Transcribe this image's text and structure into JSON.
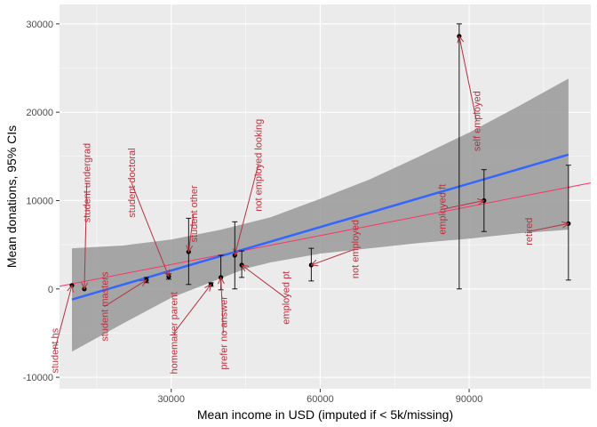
{
  "chart_data": {
    "type": "scatter",
    "title": "",
    "xlabel": "Mean income in USD (imputed if < 5k/missing)",
    "ylabel": "Mean donations, 95% CIs",
    "xlim": [
      7500,
      114500
    ],
    "ylim": [
      -11300,
      32200
    ],
    "x_ticks": [
      30000,
      60000,
      90000
    ],
    "x_tick_labels": [
      "30000",
      "60000",
      "90000"
    ],
    "y_ticks": [
      -10000,
      0,
      10000,
      20000,
      30000
    ],
    "y_tick_labels": [
      "-10000",
      "0",
      "10000",
      "20000",
      "30000"
    ],
    "grid": true,
    "legend": "none",
    "colors": {
      "panel": "#ebebeb",
      "grid": "#ffffff",
      "point": "#000000",
      "errorbar": "#000000",
      "fit_line": "#3366ff",
      "ribbon": "#999999",
      "ref_line": "#ff3366",
      "annotation": "#b5323f"
    },
    "points": [
      {
        "group": "student hs",
        "x": 10000,
        "y": 400
      },
      {
        "group": "student undergrad",
        "x": 12500,
        "y": 0
      },
      {
        "group": "student masters",
        "x": 25000,
        "y": 1000,
        "ymin": 700,
        "ymax": 1300
      },
      {
        "group": "student doctoral",
        "x": 29500,
        "y": 1400,
        "ymin": 1100,
        "ymax": 1700
      },
      {
        "group": "student other",
        "x": 33500,
        "y": 4200,
        "ymin": 500,
        "ymax": 8000
      },
      {
        "group": "homemaker parent",
        "x": 38000,
        "y": 500,
        "ymin": 300,
        "ymax": 700
      },
      {
        "group": "prefer no answer",
        "x": 40000,
        "y": 1300,
        "ymin": -100,
        "ymax": 3800
      },
      {
        "group": "not employed looking",
        "x": 42800,
        "y": 3800,
        "ymin": 0,
        "ymax": 7600
      },
      {
        "group": "employed pt",
        "x": 44200,
        "y": 2700,
        "ymin": 1300,
        "ymax": 4300
      },
      {
        "group": "not employed",
        "x": 58200,
        "y": 2700,
        "ymin": 900,
        "ymax": 4600
      },
      {
        "group": "self employed",
        "x": 88000,
        "y": 28600,
        "ymin": 0,
        "ymax": 30000
      },
      {
        "group": "employed ft",
        "x": 93000,
        "y": 10000,
        "ymin": 6500,
        "ymax": 13500
      },
      {
        "group": "retired",
        "x": 110000,
        "y": 7400,
        "ymin": 1000,
        "ymax": 14000
      }
    ],
    "fit_line": {
      "x": [
        10000,
        110000
      ],
      "y": [
        -1200,
        15200
      ]
    },
    "confidence_ribbon": {
      "x": [
        10000,
        20000,
        30000,
        40000,
        45000,
        50000,
        60000,
        70000,
        80000,
        90000,
        100000,
        110000
      ],
      "lower": [
        -7100,
        -4000,
        -1000,
        1200,
        2300,
        3000,
        4000,
        4600,
        5200,
        5700,
        6300,
        6700
      ],
      "upper": [
        4600,
        4900,
        5600,
        6700,
        7400,
        8100,
        10200,
        12400,
        15000,
        17700,
        20700,
        23800
      ]
    },
    "reference_line": {
      "x": [
        7500,
        114500
      ],
      "y": [
        300,
        12000
      ]
    },
    "annotations": [
      {
        "text": "student hs",
        "x": 10000,
        "y": 400,
        "label_x": 6500,
        "label_y": -7000,
        "angle": -90
      },
      {
        "text": "student undergrad",
        "x": 12500,
        "y": 0,
        "label_x": 13000,
        "label_y": 12000,
        "angle": -90
      },
      {
        "text": "student masters",
        "x": 25000,
        "y": 1000,
        "label_x": 16500,
        "label_y": -2000,
        "angle": -90
      },
      {
        "text": "student doctoral",
        "x": 29500,
        "y": 1400,
        "label_x": 22000,
        "label_y": 12000,
        "angle": -90
      },
      {
        "text": "student other",
        "x": 33500,
        "y": 4200,
        "label_x": 34500,
        "label_y": 8500,
        "angle": -90
      },
      {
        "text": "homemaker parent",
        "x": 38000,
        "y": 500,
        "label_x": 30500,
        "label_y": -5000,
        "angle": -90
      },
      {
        "text": "prefer no answer",
        "x": 40000,
        "y": 1300,
        "label_x": 40500,
        "label_y": -5000,
        "angle": -90
      },
      {
        "text": "not employed looking",
        "x": 42800,
        "y": 3800,
        "label_x": 47500,
        "label_y": 14000,
        "angle": -90
      },
      {
        "text": "employed pt",
        "x": 44200,
        "y": 2700,
        "label_x": 53000,
        "label_y": -1000,
        "angle": -90
      },
      {
        "text": "not employed",
        "x": 58200,
        "y": 2700,
        "label_x": 67000,
        "label_y": 4500,
        "angle": -90
      },
      {
        "text": "self employed",
        "x": 88000,
        "y": 28600,
        "label_x": 91500,
        "label_y": 19000,
        "angle": -90
      },
      {
        "text": "employed ft",
        "x": 93000,
        "y": 10000,
        "label_x": 84500,
        "label_y": 9000,
        "angle": -90
      },
      {
        "text": "retired",
        "x": 110000,
        "y": 7400,
        "label_x": 102000,
        "label_y": 6500,
        "angle": -90
      }
    ]
  }
}
